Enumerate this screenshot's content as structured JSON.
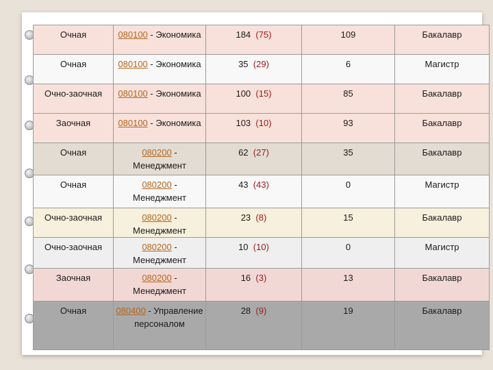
{
  "rows": [
    {
      "form": "Очная",
      "code": "080100",
      "name": " - Экономика",
      "wrap": false,
      "num": "184",
      "paren": "(75)",
      "seats": "109",
      "level": "Бакалавр"
    },
    {
      "form": "Очная",
      "code": "080100",
      "name": " - Экономика",
      "wrap": false,
      "num": "35",
      "paren": "(29)",
      "seats": "6",
      "level": "Магистр"
    },
    {
      "form": "Очно-заочная",
      "code": "080100",
      "name": " - Экономика",
      "wrap": false,
      "num": "100",
      "paren": "(15)",
      "seats": "85",
      "level": "Бакалавр"
    },
    {
      "form": "Заочная",
      "code": "080100",
      "name": " - Экономика",
      "wrap": false,
      "num": "103",
      "paren": "(10)",
      "seats": "93",
      "level": "Бакалавр"
    },
    {
      "form": "Очная",
      "code": "080200",
      "name": " - Менеджмент",
      "wrap": true,
      "num": "62",
      "paren": "(27)",
      "seats": "35",
      "level": "Бакалавр"
    },
    {
      "form": "Очная",
      "code": "080200",
      "name": " - Менеджмент",
      "wrap": true,
      "num": "43",
      "paren": "(43)",
      "seats": "0",
      "level": "Магистр"
    },
    {
      "form": "Очно-заочная",
      "code": "080200",
      "name": " - Менеджмент",
      "wrap": true,
      "num": "23",
      "paren": "(8)",
      "seats": "15",
      "level": "Бакалавр"
    },
    {
      "form": "Очно-заочная",
      "code": "080200",
      "name": " - Менеджмент",
      "wrap": true,
      "num": "10",
      "paren": "(10)",
      "seats": "0",
      "level": "Магистр"
    },
    {
      "form": "Заочная",
      "code": "080200",
      "name": " - Менеджмент",
      "wrap": true,
      "num": "16",
      "paren": "(3)",
      "seats": "13",
      "level": "Бакалавр"
    },
    {
      "form": "Очная",
      "code": "080400",
      "name": " - Управление персоналом",
      "wrap": true,
      "num": "28",
      "paren": "(9)",
      "seats": "19",
      "level": "Бакалавр"
    }
  ]
}
